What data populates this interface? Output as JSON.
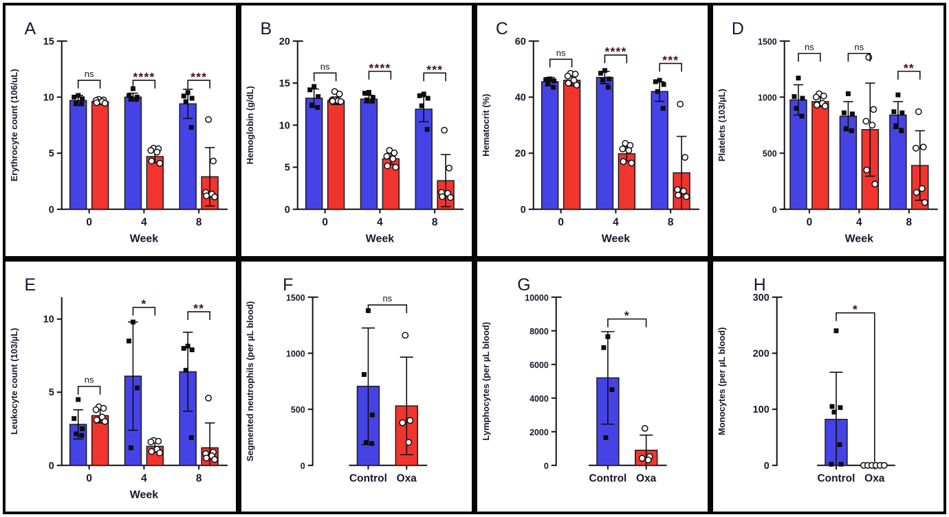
{
  "figure": {
    "description": "Eight-panel hematology bar chart figure, Control vs Oxa",
    "group_labels": {
      "control": "Control",
      "oxa": "Oxa"
    }
  },
  "colors": {
    "control_fill": "#4643e6",
    "oxa_fill": "#f2342e",
    "bar_edge": "#1a1a1a",
    "axis": "#111111",
    "tick_text": "#16162e",
    "sig_star": "#4a1126",
    "ns_text": "#111111",
    "point": "#0d0d0d"
  },
  "chart_data": [
    {
      "type": "bar",
      "panel": "A",
      "layout": "grouped",
      "ylabel": "Erythrocyte count (106/uL)",
      "xlabel": "Week",
      "categories": [
        "0",
        "4",
        "8"
      ],
      "yticks": [
        0,
        5,
        10,
        15
      ],
      "axis_max": 15,
      "series": [
        {
          "name": "Control",
          "marker": "filled-square",
          "values": [
            9.7,
            10.0,
            9.4
          ],
          "errors": [
            0.45,
            0.35,
            1.3
          ],
          "points": [
            [
              10.15,
              10.0,
              9.85,
              9.5,
              9.4
            ],
            [
              10.75,
              10.15,
              10.0,
              9.9,
              9.8
            ],
            [
              10.4,
              10.1,
              9.9,
              9.6,
              7.3
            ]
          ]
        },
        {
          "name": "Oxa",
          "marker": "open-circle",
          "values": [
            9.6,
            4.7,
            2.9
          ],
          "errors": [
            0.25,
            0.55,
            2.6
          ],
          "points": [
            [
              9.8,
              9.75,
              9.7,
              9.6,
              9.5,
              9.45
            ],
            [
              5.45,
              5.4,
              5.25,
              5.1,
              4.3,
              4.1
            ],
            [
              8.0,
              4.3,
              1.5,
              1.35,
              1.2,
              1.1
            ]
          ]
        }
      ],
      "significance": [
        {
          "label": "ns",
          "y": 11.5
        },
        {
          "label": "****",
          "y": 11.5
        },
        {
          "label": "***",
          "y": 11.5
        }
      ]
    },
    {
      "type": "bar",
      "panel": "B",
      "layout": "grouped",
      "ylabel": "Hemoglobin (g/dL)",
      "xlabel": "Week",
      "categories": [
        "0",
        "4",
        "8"
      ],
      "yticks": [
        0,
        5,
        10,
        15,
        20
      ],
      "axis_max": 20,
      "series": [
        {
          "name": "Control",
          "marker": "filled-square",
          "values": [
            13.2,
            13.1,
            11.9
          ],
          "errors": [
            1.1,
            0.45,
            1.5
          ],
          "points": [
            [
              14.6,
              14.2,
              13.4,
              12.4,
              12.1
            ],
            [
              13.9,
              13.8,
              13.3,
              13.0,
              12.85
            ],
            [
              13.7,
              13.5,
              13.2,
              12.3,
              9.5
            ]
          ]
        },
        {
          "name": "Oxa",
          "marker": "open-circle",
          "values": [
            12.9,
            6.0,
            3.4
          ],
          "errors": [
            0.45,
            0.65,
            3.1
          ],
          "points": [
            [
              14.0,
              13.7,
              12.95,
              12.9,
              12.85,
              12.8
            ],
            [
              7.0,
              6.7,
              6.3,
              6.0,
              5.15,
              5.0
            ],
            [
              9.4,
              4.9,
              2.0,
              1.9,
              1.5,
              1.4
            ]
          ]
        }
      ],
      "significance": [
        {
          "label": "ns",
          "y": 16.2
        },
        {
          "label": "****",
          "y": 16.4
        },
        {
          "label": "***",
          "y": 16.2
        }
      ]
    },
    {
      "type": "bar",
      "panel": "C",
      "layout": "grouped",
      "ylabel": "Hematocrit (%)",
      "xlabel": "Week",
      "categories": [
        "0",
        "4",
        "8"
      ],
      "yticks": [
        0,
        20,
        40,
        60
      ],
      "axis_max": 60,
      "series": [
        {
          "name": "Control",
          "marker": "filled-square",
          "values": [
            45.5,
            47.0,
            42.0
          ],
          "errors": [
            1.5,
            2.2,
            3.5
          ],
          "points": [
            [
              46.5,
              46.2,
              45.8,
              45.0,
              43.5
            ],
            [
              49.5,
              48.5,
              46.5,
              46.0,
              43.5
            ],
            [
              46.0,
              45.5,
              44.5,
              42.0,
              36.0
            ]
          ]
        },
        {
          "name": "Oxa",
          "marker": "open-circle",
          "values": [
            46.0,
            19.8,
            13.0
          ],
          "errors": [
            2.0,
            2.6,
            13.0
          ],
          "points": [
            [
              48.5,
              48.2,
              47.5,
              46.0,
              45.0,
              44.3
            ],
            [
              23.5,
              22.8,
              21.5,
              21.0,
              17.0,
              16.5
            ],
            [
              37.5,
              18.5,
              7.0,
              6.5,
              5.0,
              4.5
            ]
          ]
        }
      ],
      "significance": [
        {
          "label": "ns",
          "y": 53.5
        },
        {
          "label": "****",
          "y": 55.0
        },
        {
          "label": "***",
          "y": 52.0
        }
      ]
    },
    {
      "type": "bar",
      "panel": "D",
      "layout": "grouped",
      "ylabel": "Platelets (103/µL)",
      "xlabel": "Week",
      "categories": [
        "0",
        "4",
        "8"
      ],
      "yticks": [
        0,
        500,
        1000,
        1500
      ],
      "axis_max": 1500,
      "series": [
        {
          "name": "Control",
          "marker": "filled-square",
          "values": [
            975,
            830,
            840
          ],
          "errors": [
            135,
            130,
            120
          ],
          "points": [
            [
              1170,
              1005,
              990,
              900,
              830
            ],
            [
              1030,
              860,
              850,
              720,
              700
            ],
            [
              1020,
              870,
              860,
              745,
              700
            ]
          ]
        },
        {
          "name": "Oxa",
          "marker": "open-circle",
          "values": [
            960,
            710,
            390
          ],
          "errors": [
            45,
            415,
            310
          ],
          "points": [
            [
              1030,
              1010,
              1000,
              945,
              930,
              920
            ],
            [
              1355,
              890,
              785,
              750,
              350,
              225
            ],
            [
              870,
              555,
              545,
              185,
              150,
              60
            ]
          ]
        }
      ],
      "significance": [
        {
          "label": "ns",
          "y": 1390
        },
        {
          "label": "ns",
          "y": 1390
        },
        {
          "label": "**",
          "y": 1230
        }
      ]
    },
    {
      "type": "bar",
      "panel": "E",
      "layout": "grouped",
      "ylabel": "Leukocyte count (103/µL)",
      "xlabel": "Week",
      "categories": [
        "0",
        "4",
        "8"
      ],
      "yticks": [
        0,
        5,
        10
      ],
      "axis_max": 11.5,
      "series": [
        {
          "name": "Control",
          "marker": "filled-square",
          "values": [
            2.8,
            6.1,
            6.4
          ],
          "errors": [
            1.0,
            3.7,
            2.7
          ],
          "points": [
            [
              4.5,
              3.2,
              2.5,
              2.15,
              2.05
            ],
            [
              9.8,
              8.5,
              5.3,
              1.2
            ],
            [
              8.15,
              8.0,
              7.9,
              6.5,
              1.9
            ]
          ]
        },
        {
          "name": "Oxa",
          "marker": "open-circle",
          "values": [
            3.4,
            1.3,
            1.2
          ],
          "errors": [
            0.5,
            0.4,
            1.7
          ],
          "points": [
            [
              4.0,
              3.9,
              3.8,
              3.3,
              3.1,
              3.0
            ],
            [
              1.7,
              1.65,
              1.6,
              1.1,
              0.95,
              0.85
            ],
            [
              4.6,
              0.9,
              0.8,
              0.65,
              0.5,
              0.4
            ]
          ]
        }
      ],
      "significance": [
        {
          "label": "ns",
          "y": 5.4
        },
        {
          "label": "*",
          "y": 10.8
        },
        {
          "label": "**",
          "y": 10.5
        }
      ]
    },
    {
      "type": "bar",
      "panel": "F",
      "layout": "simple",
      "ylabel": "Segmented neutrophils (per µL blood)",
      "xlabel": "",
      "categories": [
        "Control",
        "Oxa"
      ],
      "yticks": [
        0,
        500,
        1000,
        1500
      ],
      "axis_max": 1500,
      "series": [
        {
          "name": "Control",
          "marker": "filled-square",
          "values": [
            705
          ],
          "errors": [
            520
          ],
          "points": [
            [
              1380,
              810,
              450,
              205,
              195
            ]
          ]
        },
        {
          "name": "Oxa",
          "marker": "open-circle",
          "values": [
            530
          ],
          "errors": [
            435
          ],
          "points": [
            [
              1160,
              400,
              380,
              205
            ]
          ]
        }
      ],
      "significance": [
        {
          "label": "ns",
          "y": 1430
        }
      ]
    },
    {
      "type": "bar",
      "panel": "G",
      "layout": "simple",
      "ylabel": "Lymphocytes (per µL blood)",
      "xlabel": "",
      "categories": [
        "Control",
        "Oxa"
      ],
      "yticks": [
        0,
        2000,
        4000,
        6000,
        8000,
        10000
      ],
      "axis_max": 10000,
      "series": [
        {
          "name": "Control",
          "marker": "filled-square",
          "values": [
            5200
          ],
          "errors": [
            2750
          ],
          "points": [
            [
              7650,
              7000,
              4500,
              1650
            ]
          ]
        },
        {
          "name": "Oxa",
          "marker": "open-circle",
          "values": [
            900
          ],
          "errors": [
            900
          ],
          "points": [
            [
              2200,
              520,
              420,
              320
            ]
          ]
        }
      ],
      "significance": [
        {
          "label": "*",
          "y": 8700
        }
      ]
    },
    {
      "type": "bar",
      "panel": "H",
      "layout": "simple",
      "ylabel": "Monocytes (per µL blood)",
      "xlabel": "",
      "categories": [
        "Control",
        "Oxa"
      ],
      "yticks": [
        0,
        100,
        200,
        300
      ],
      "axis_max": 300,
      "series": [
        {
          "name": "Control",
          "marker": "filled-square",
          "values": [
            82
          ],
          "errors": [
            84
          ],
          "points": [
            [
              240,
              105,
              103,
              95,
              37,
              2,
              2
            ]
          ]
        },
        {
          "name": "Oxa",
          "marker": "open-circle",
          "values": [
            0
          ],
          "errors": [
            0
          ],
          "points": [
            [
              0,
              0,
              0,
              0,
              0,
              0
            ]
          ]
        }
      ],
      "significance": [
        {
          "label": "*",
          "y": 272,
          "drop_right_to": 6
        }
      ]
    }
  ]
}
